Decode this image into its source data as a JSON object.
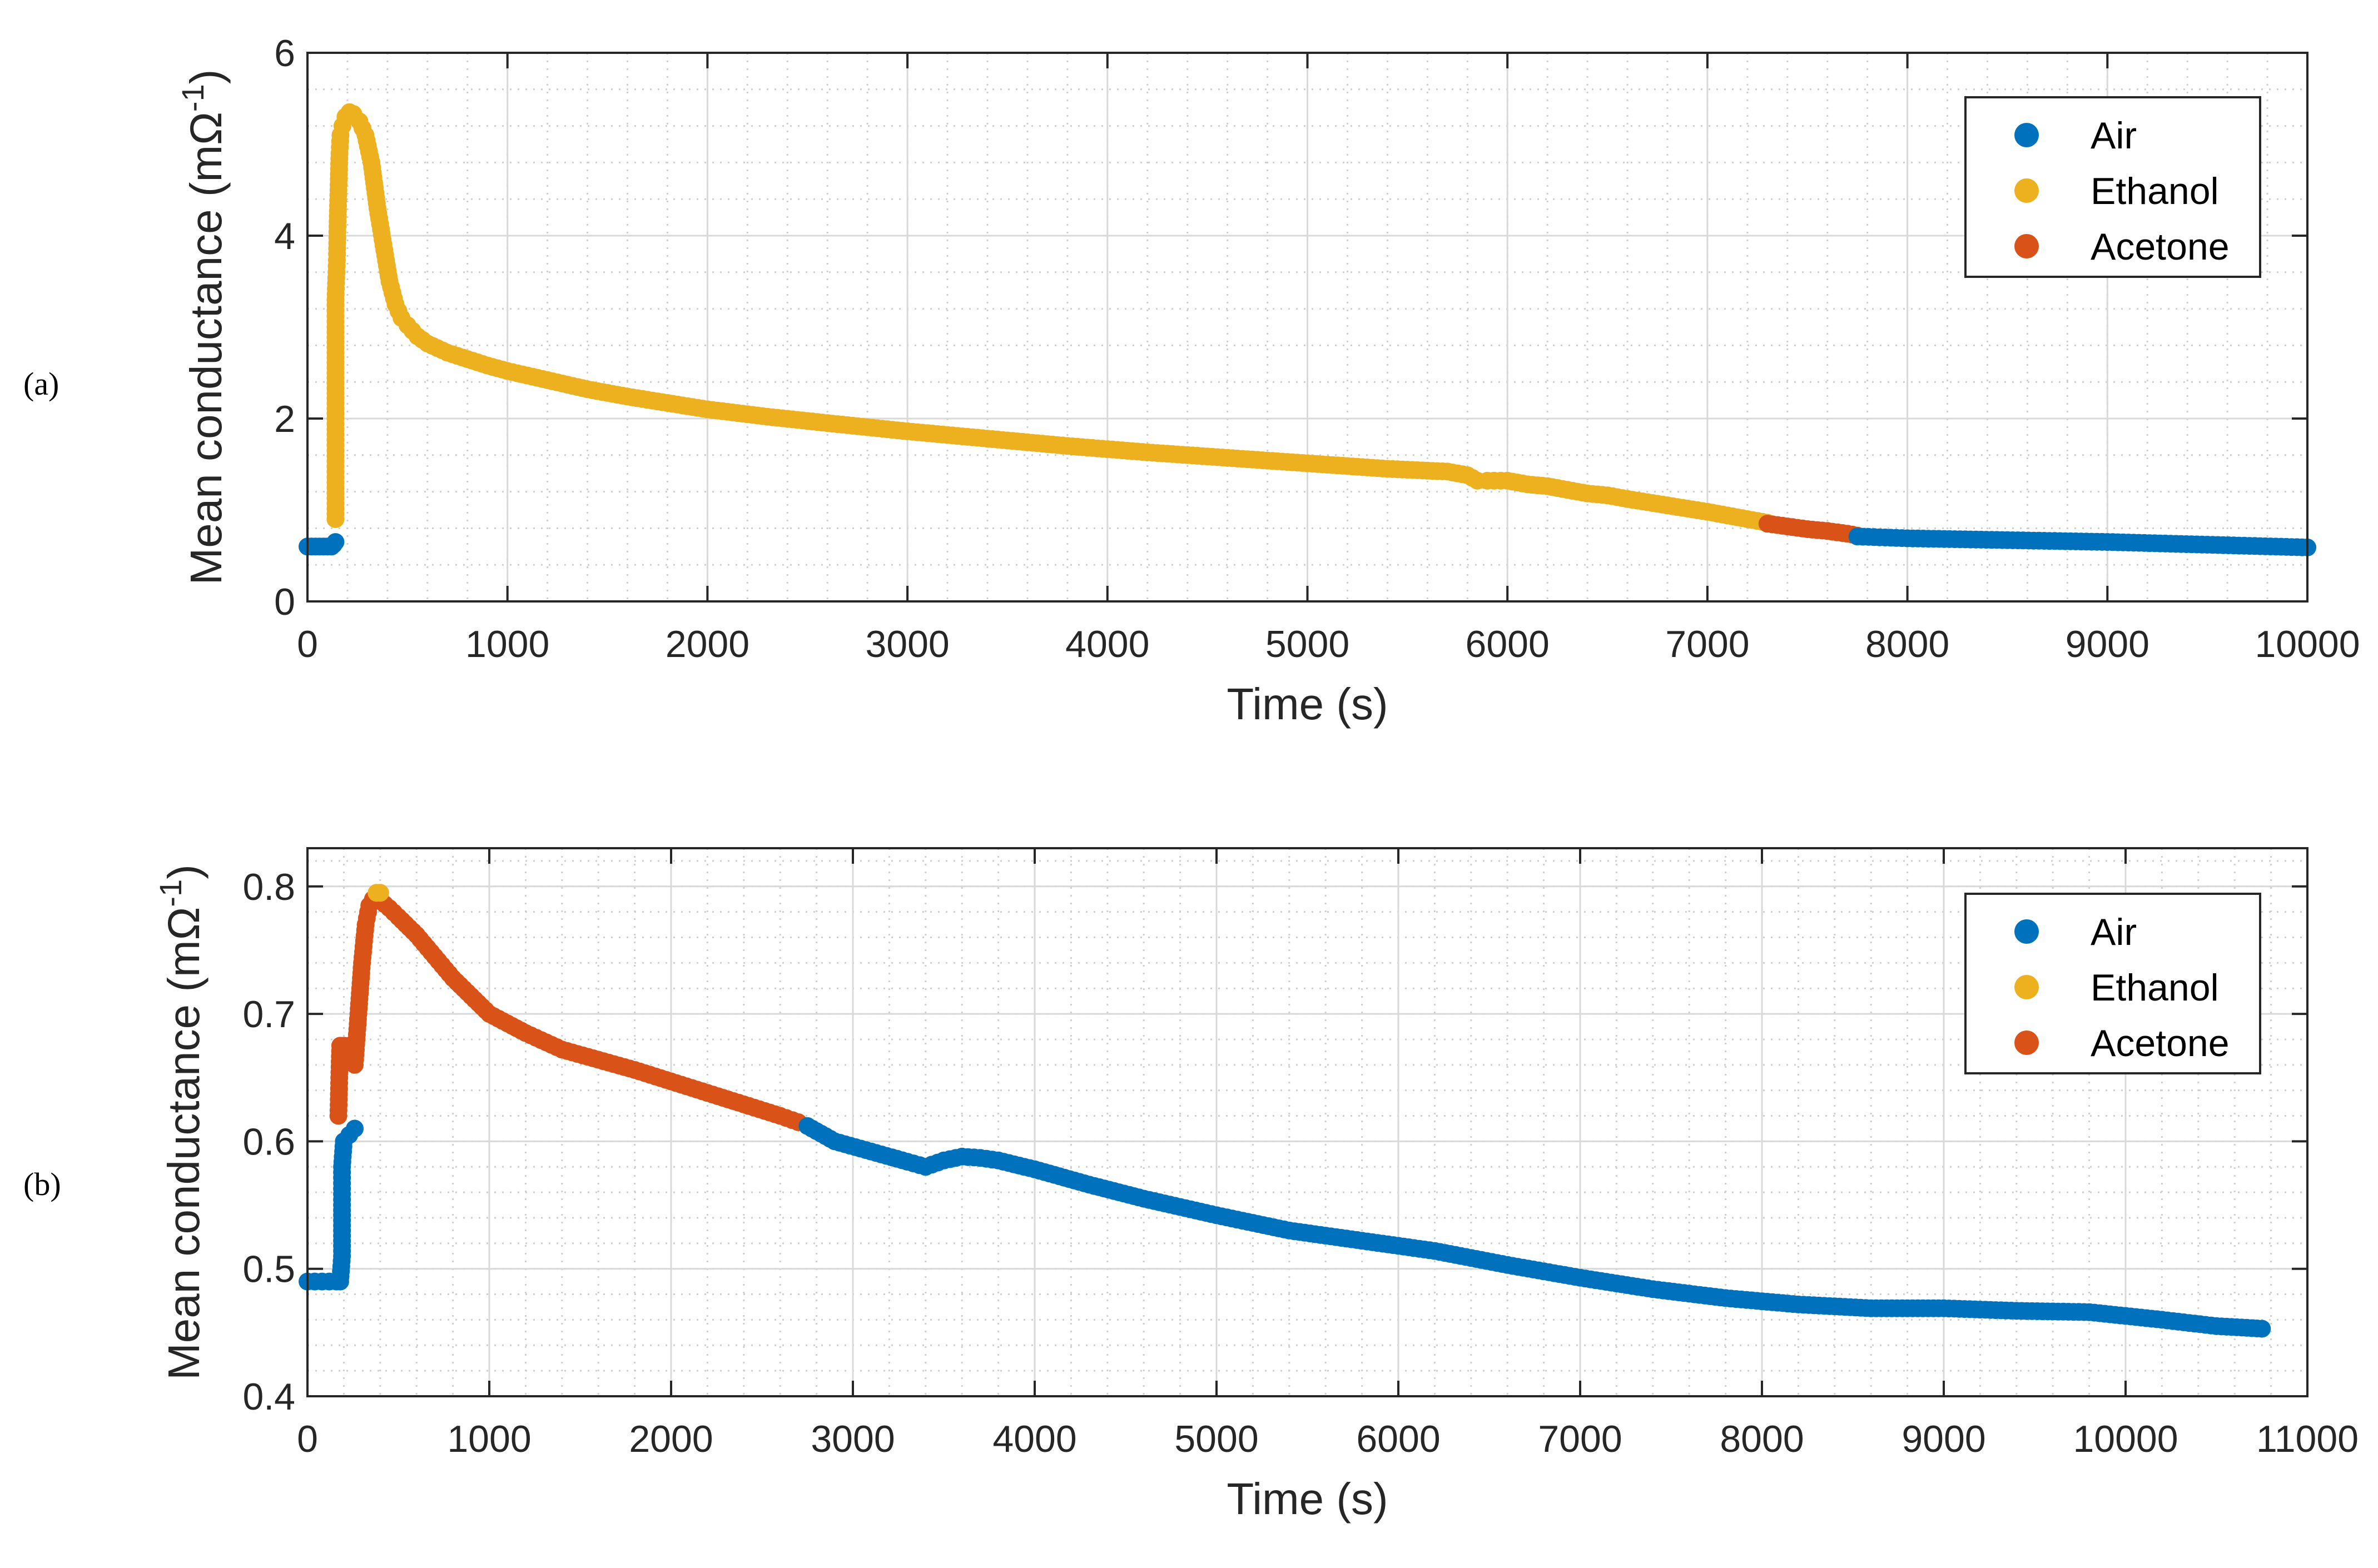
{
  "chart_data": [
    {
      "type": "scatter",
      "panel_label": "(a)",
      "xlabel": "Time (s)",
      "ylabel_main": "Mean conductance (mΩ",
      "ylabel_sup": "-1",
      "ylabel_end": ")",
      "xlim": [
        0,
        10000
      ],
      "ylim": [
        0,
        6
      ],
      "xticks": [
        0,
        1000,
        2000,
        3000,
        4000,
        5000,
        6000,
        7000,
        8000,
        9000,
        10000
      ],
      "xtick_labels": [
        "0",
        "1000",
        "2000",
        "3000",
        "4000",
        "5000",
        "6000",
        "7000",
        "8000",
        "9000",
        "10000"
      ],
      "yticks": [
        0,
        2,
        4,
        6
      ],
      "ytick_labels": [
        "0",
        "2",
        "4",
        "6"
      ],
      "grid": true,
      "legend_position": "top-right",
      "legend": [
        "Air",
        "Ethanol",
        "Acetone"
      ],
      "series": [
        {
          "name": "Air",
          "color": "#0072BD",
          "x": [
            0,
            20,
            40,
            60,
            80,
            100,
            120
          ],
          "y": [
            0.6,
            0.6,
            0.6,
            0.6,
            0.6,
            0.6,
            0.6
          ]
        },
        {
          "name": "Air",
          "color": "#0072BD",
          "x": [
            130,
            140
          ],
          "y": [
            0.62,
            0.65
          ]
        },
        {
          "name": "Ethanol",
          "color": "#EDB120",
          "x": [
            140,
            140,
            140,
            140,
            140,
            140,
            145,
            148,
            150,
            155,
            160,
            165,
            175,
            190,
            210,
            230,
            260,
            290,
            320,
            350,
            380,
            410,
            440,
            470,
            500,
            550,
            600,
            700,
            800,
            900,
            1000,
            1200,
            1400,
            1600,
            1800,
            2000,
            2300,
            2600,
            3000,
            3400,
            3800,
            4200,
            4600,
            5000,
            5400,
            5700,
            5800,
            5850,
            5900,
            6000,
            6100,
            6200,
            6300,
            6400,
            6500,
            6600,
            6800,
            7000,
            7200,
            7300
          ],
          "y": [
            0.9,
            1.3,
            2.0,
            2.5,
            3.0,
            3.3,
            3.6,
            3.8,
            4.1,
            4.5,
            4.9,
            5.1,
            5.2,
            5.3,
            5.35,
            5.33,
            5.25,
            5.1,
            4.8,
            4.3,
            3.9,
            3.5,
            3.25,
            3.1,
            3.02,
            2.9,
            2.82,
            2.72,
            2.65,
            2.58,
            2.52,
            2.42,
            2.32,
            2.24,
            2.17,
            2.1,
            2.02,
            1.95,
            1.86,
            1.78,
            1.7,
            1.63,
            1.57,
            1.51,
            1.45,
            1.42,
            1.38,
            1.32,
            1.32,
            1.32,
            1.28,
            1.26,
            1.22,
            1.18,
            1.16,
            1.12,
            1.05,
            0.98,
            0.9,
            0.86
          ]
        },
        {
          "name": "Acetone",
          "color": "#D95319",
          "x": [
            7300,
            7400,
            7500,
            7600,
            7700,
            7750
          ],
          "y": [
            0.85,
            0.82,
            0.79,
            0.77,
            0.74,
            0.72
          ]
        },
        {
          "name": "Air",
          "color": "#0072BD",
          "x": [
            7750,
            8000,
            8500,
            9000,
            9500,
            10000
          ],
          "y": [
            0.71,
            0.69,
            0.67,
            0.65,
            0.62,
            0.59
          ]
        }
      ]
    },
    {
      "type": "scatter",
      "panel_label": "(b)",
      "xlabel": "Time (s)",
      "ylabel_main": "Mean conductance (mΩ",
      "ylabel_sup": "-1",
      "ylabel_end": ")",
      "xlim": [
        0,
        11000
      ],
      "ylim": [
        0.4,
        0.83
      ],
      "xticks": [
        0,
        1000,
        2000,
        3000,
        4000,
        5000,
        6000,
        7000,
        8000,
        9000,
        10000,
        11000
      ],
      "xtick_labels": [
        "0",
        "1000",
        "2000",
        "3000",
        "4000",
        "5000",
        "6000",
        "7000",
        "8000",
        "9000",
        "10000",
        "11000"
      ],
      "yticks": [
        0.4,
        0.5,
        0.6,
        0.7,
        0.8
      ],
      "ytick_labels": [
        "0.4",
        "0.5",
        "0.6",
        "0.7",
        "0.8"
      ],
      "grid": true,
      "legend_position": "top-right",
      "legend": [
        "Air",
        "Ethanol",
        "Acetone"
      ],
      "series": [
        {
          "name": "Air",
          "color": "#0072BD",
          "x": [
            0,
            40,
            80,
            120,
            160,
            180,
            190,
            190,
            190,
            190,
            200,
            230,
            260
          ],
          "y": [
            0.49,
            0.49,
            0.49,
            0.49,
            0.49,
            0.49,
            0.51,
            0.53,
            0.55,
            0.58,
            0.6,
            0.605,
            0.61
          ]
        },
        {
          "name": "Acetone",
          "color": "#D95319",
          "x": [
            170,
            175,
            180,
            200,
            230,
            260,
            270,
            280,
            290,
            300,
            320,
            340,
            360,
            400,
            450,
            500,
            600,
            700,
            800,
            900,
            1000,
            1200,
            1400,
            1600,
            1800,
            2000,
            2200,
            2400,
            2600,
            2700
          ],
          "y": [
            0.62,
            0.65,
            0.675,
            0.675,
            0.675,
            0.66,
            0.68,
            0.7,
            0.72,
            0.74,
            0.77,
            0.785,
            0.79,
            0.789,
            0.783,
            0.776,
            0.762,
            0.745,
            0.728,
            0.714,
            0.7,
            0.685,
            0.672,
            0.664,
            0.656,
            0.647,
            0.638,
            0.629,
            0.62,
            0.615
          ]
        },
        {
          "name": "Ethanol",
          "color": "#EDB120",
          "x": [
            380,
            400
          ],
          "y": [
            0.795,
            0.795
          ]
        },
        {
          "name": "Air",
          "color": "#0072BD",
          "x": [
            2750,
            2900,
            3100,
            3300,
            3400,
            3500,
            3600,
            3700,
            3800,
            4000,
            4300,
            4600,
            5000,
            5400,
            5800,
            6200,
            6600,
            7000,
            7400,
            7800,
            8200,
            8600,
            9000,
            9400,
            9800,
            10200,
            10500,
            10750
          ],
          "y": [
            0.612,
            0.6,
            0.592,
            0.584,
            0.58,
            0.585,
            0.588,
            0.587,
            0.585,
            0.578,
            0.566,
            0.555,
            0.542,
            0.53,
            0.522,
            0.514,
            0.503,
            0.493,
            0.484,
            0.477,
            0.472,
            0.469,
            0.469,
            0.467,
            0.466,
            0.46,
            0.455,
            0.453
          ]
        }
      ]
    }
  ]
}
